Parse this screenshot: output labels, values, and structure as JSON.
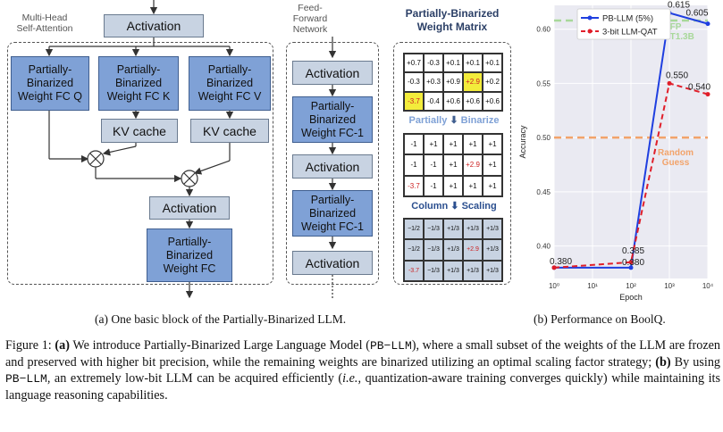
{
  "diagram": {
    "mha_label": "Multi-Head\nSelf-Attention",
    "ffn_label": "Feed-\nForward\nNetwork",
    "activation": "Activation",
    "weight_q": "Partially-\nBinarized\nWeight FC Q",
    "weight_k": "Partially-\nBinarized\nWeight FC K",
    "weight_v": "Partially-\nBinarized\nWeight FC V",
    "kv_cache": "KV cache",
    "weight_fc": "Partially-\nBinarized\nWeight FC",
    "weight_fc1": "Partially-\nBinarized\nWeight FC-1",
    "matrix_title": "Partially-Binarized\nWeight Matrix",
    "step_binarize": "Partially",
    "step_binarize2": "Binarize",
    "step_scaling": "Column",
    "step_scaling2": "Scaling",
    "matrix1": [
      "+0.7",
      "-0.3",
      "+0.1",
      "+0.1",
      "+0.1",
      "-0.3",
      "+0.3",
      "+0.9",
      "+2.9",
      "+0.2",
      "-3.7",
      "-0.4",
      "+0.6",
      "+0.6",
      "+0.6"
    ],
    "matrix2": [
      "-1",
      "+1",
      "+1",
      "+1",
      "+1",
      "-1",
      "-1",
      "+1",
      "+2.9",
      "+1",
      "-3.7",
      "-1",
      "+1",
      "+1",
      "+1"
    ],
    "matrix3": [
      "−1/2",
      "−1/3",
      "+1/3",
      "+1/3",
      "+1/3",
      "−1/2",
      "−1/3",
      "+1/3",
      "+2.9",
      "+1/3",
      "-3.7",
      "−1/3",
      "+1/3",
      "+1/3",
      "+1/3"
    ],
    "highlight_cells": [
      8,
      10
    ]
  },
  "chart_data": {
    "type": "line",
    "xlabel": "Epoch",
    "ylabel": "Accuracy",
    "x_ticks": [
      "10⁰",
      "10¹",
      "10²",
      "10³",
      "10⁴"
    ],
    "y_ticks": [
      "0.40",
      "0.45",
      "0.50",
      "0.55",
      "0.60"
    ],
    "xlim_log10": [
      0,
      4
    ],
    "ylim": [
      0.37,
      0.622
    ],
    "series": [
      {
        "name": "PB-LLM (5%)",
        "color": "#1f3fe0",
        "style": "solid",
        "x_log10": [
          0,
          2,
          3,
          4
        ],
        "y": [
          0.38,
          0.38,
          0.615,
          0.605
        ]
      },
      {
        "name": "3-bit LLM-QAT",
        "color": "#e01f2a",
        "style": "dashed",
        "x_log10": [
          0,
          2,
          3,
          4
        ],
        "y": [
          0.38,
          0.385,
          0.55,
          0.54
        ]
      }
    ],
    "point_labels": [
      {
        "text": "0.380",
        "x_log10": 0,
        "y": 0.38
      },
      {
        "text": "0.380",
        "x_log10": 2,
        "y": 0.38
      },
      {
        "text": "0.385",
        "x_log10": 2,
        "y": 0.385
      },
      {
        "text": "0.615",
        "x_log10": 3,
        "y": 0.615
      },
      {
        "text": "0.605",
        "x_log10": 4,
        "y": 0.605
      },
      {
        "text": "0.550",
        "x_log10": 3,
        "y": 0.55
      },
      {
        "text": "0.540",
        "x_log10": 4,
        "y": 0.54
      }
    ],
    "reference_lines": [
      {
        "label": "FP\nOPT1.3B",
        "y": 0.608,
        "color": "#a8d89a"
      },
      {
        "label": "Random\nGuess",
        "y": 0.5,
        "color": "#f2a36a"
      }
    ],
    "legend_position": "top-right"
  },
  "captions": {
    "sub_a": "(a) One basic block of the Partially-Binarized LLM.",
    "sub_b": "(b) Performance on BoolQ.",
    "fig_label": "Figure 1:",
    "part_a": "(a)",
    "text_a1": "We introduce Partially-Binarized Large Language Model (",
    "code1": "PB−LLM",
    "text_a2": "), where a small subset of the weights of the LLM are frozen and preserved with higher bit precision, while the remaining weights are binarized utilizing an optimal scaling factor strategy;",
    "part_b": "(b)",
    "text_b1": "By using",
    "code2": "PB−LLM",
    "text_b2": ", an extremely low-bit LLM can be acquired efficiently (",
    "ie": "i.e.,",
    "text_b3": "quantization-aware training converges quickly) while maintaining its language reasoning capabilities."
  }
}
